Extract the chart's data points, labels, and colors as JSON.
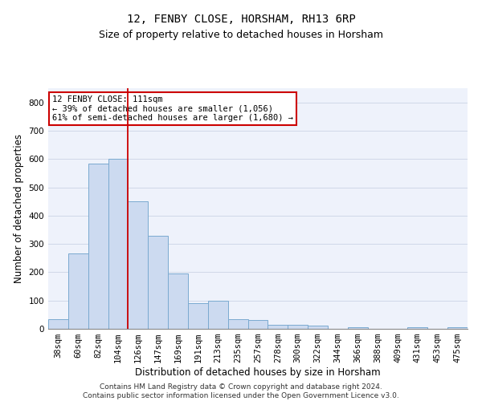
{
  "title1": "12, FENBY CLOSE, HORSHAM, RH13 6RP",
  "title2": "Size of property relative to detached houses in Horsham",
  "xlabel": "Distribution of detached houses by size in Horsham",
  "ylabel": "Number of detached properties",
  "categories": [
    "38sqm",
    "60sqm",
    "82sqm",
    "104sqm",
    "126sqm",
    "147sqm",
    "169sqm",
    "191sqm",
    "213sqm",
    "235sqm",
    "257sqm",
    "278sqm",
    "300sqm",
    "322sqm",
    "344sqm",
    "366sqm",
    "388sqm",
    "409sqm",
    "431sqm",
    "453sqm",
    "475sqm"
  ],
  "values": [
    35,
    265,
    585,
    600,
    450,
    330,
    195,
    90,
    100,
    35,
    30,
    15,
    15,
    10,
    0,
    5,
    0,
    0,
    5,
    0,
    5
  ],
  "bar_color": "#ccdaf0",
  "bar_edge_color": "#7aaad0",
  "annotation_line1": "12 FENBY CLOSE: 111sqm",
  "annotation_line2": "← 39% of detached houses are smaller (1,056)",
  "annotation_line3": "61% of semi-detached houses are larger (1,680) →",
  "annotation_box_color": "#ffffff",
  "annotation_box_edge_color": "#cc0000",
  "ylim": [
    0,
    850
  ],
  "yticks": [
    0,
    100,
    200,
    300,
    400,
    500,
    600,
    700,
    800
  ],
  "grid_color": "#d0d8e8",
  "background_color": "#eef2fb",
  "footer_line1": "Contains HM Land Registry data © Crown copyright and database right 2024.",
  "footer_line2": "Contains public sector information licensed under the Open Government Licence v3.0.",
  "title1_fontsize": 10,
  "title2_fontsize": 9,
  "xlabel_fontsize": 8.5,
  "ylabel_fontsize": 8.5,
  "tick_fontsize": 7.5,
  "footer_fontsize": 6.5,
  "red_line_index": 3.5
}
